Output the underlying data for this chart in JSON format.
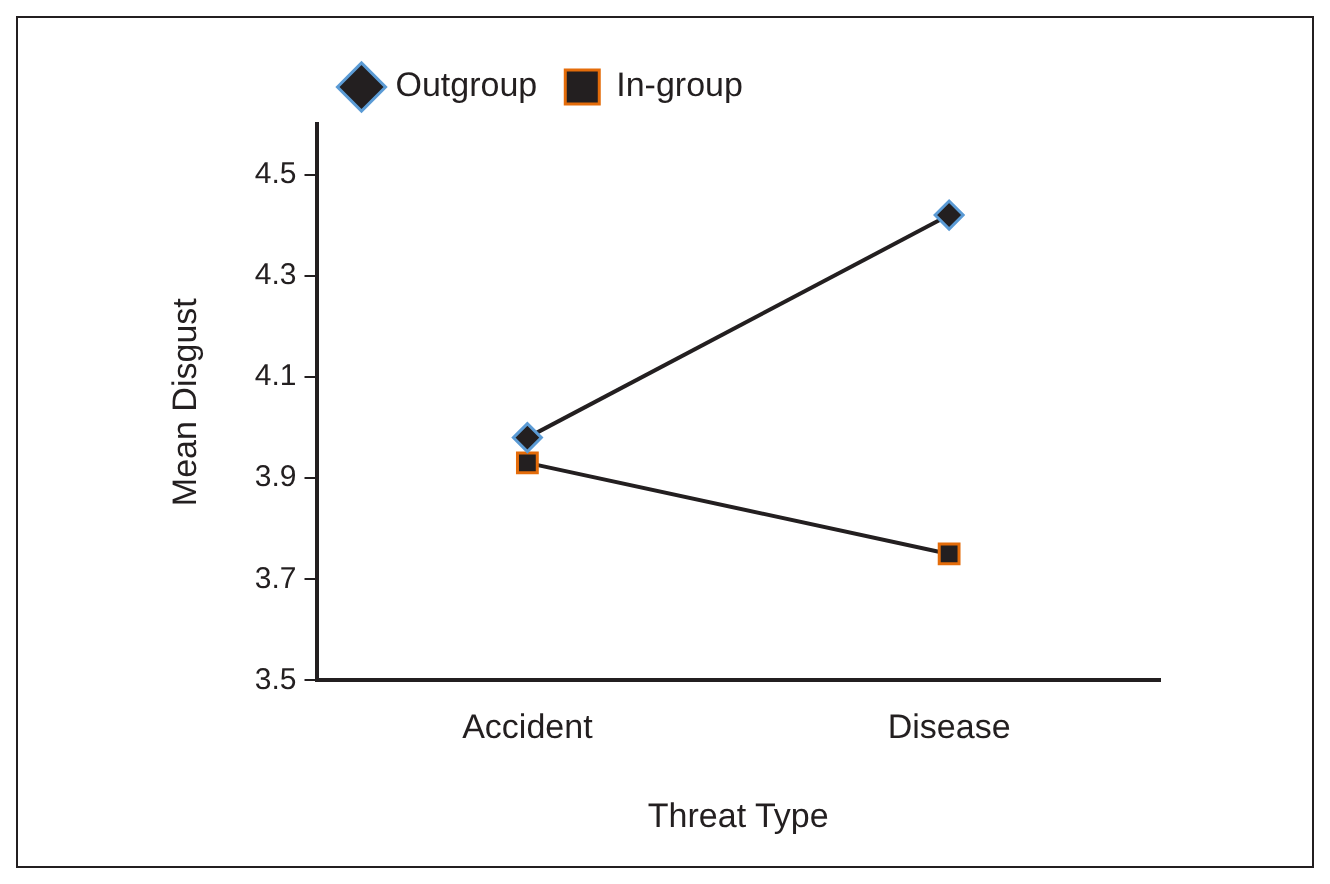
{
  "chart_data": {
    "type": "line",
    "xlabel": "Threat Type",
    "ylabel": "Mean Disgust",
    "categories": [
      "Accident",
      "Disease"
    ],
    "series": [
      {
        "name": "Outgroup",
        "color": "#231f20",
        "marker": "diamond",
        "values": [
          3.98,
          4.42
        ]
      },
      {
        "name": "In-group",
        "color": "#231f20",
        "marker": "square",
        "values": [
          3.93,
          3.75
        ]
      }
    ],
    "ylim": [
      3.5,
      4.6
    ],
    "yticks": [
      3.5,
      3.7,
      3.9,
      4.1,
      4.3,
      4.5
    ],
    "grid": false,
    "legend": "top left",
    "line_style": "solid"
  }
}
